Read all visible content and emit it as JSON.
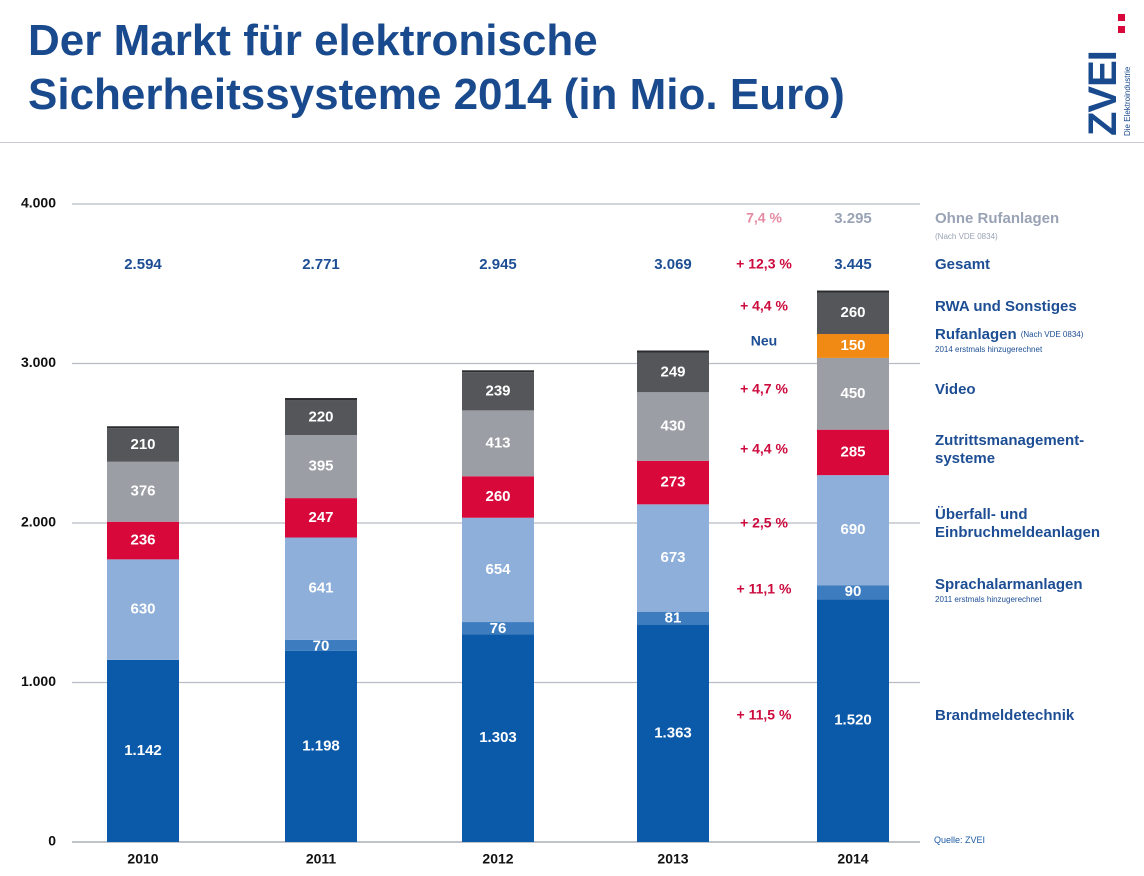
{
  "header": {
    "title_line1": "Der Markt für elektronische",
    "title_line2": "Sicherheitssysteme 2014 (in Mio. Euro)",
    "logo_text": "ZVEI",
    "logo_subtext": "Die Elektroindustrie"
  },
  "source": "Quelle: ZVEI",
  "colors": {
    "title": "#1a4a8e",
    "legend_label": "#1d4e94",
    "growth_text": "#cc0a3d",
    "light_text": "#9aa3b5",
    "light_growth": "#e48aa3"
  },
  "chart_data": {
    "type": "bar",
    "stacked": true,
    "categories": [
      "2010",
      "2011",
      "2012",
      "2013",
      "2014"
    ],
    "y_ticks": [
      "0",
      "1.000",
      "2.000",
      "3.000",
      "4.000"
    ],
    "ylim": [
      0,
      4000
    ],
    "grid": true,
    "legend_placement": "right",
    "series": [
      {
        "name": "Brandmeldetechnik",
        "color": "#0b5aa9",
        "text_color": "#ffffff",
        "values": [
          1142,
          1198,
          1303,
          1363,
          1520
        ],
        "labels": [
          "1.142",
          "1.198",
          "1.303",
          "1.363",
          "1.520"
        ],
        "growth": "+ 11,5 %"
      },
      {
        "name": "Sprachalarmanlagen",
        "subtitle": "2011 erstmals hinzugerechnet",
        "color": "#3d7cbf",
        "text_color": "#ffffff",
        "values": [
          0,
          70,
          76,
          81,
          90
        ],
        "labels": [
          "",
          "70",
          "76",
          "81",
          "90"
        ],
        "growth": "+ 11,1 %"
      },
      {
        "name": "Überfall- und Einbruchmeldeanlagen",
        "color": "#8eafd9",
        "text_color": "#ffffff",
        "values": [
          630,
          641,
          654,
          673,
          690
        ],
        "labels": [
          "630",
          "641",
          "654",
          "673",
          "690"
        ],
        "growth": "+ 2,5 %"
      },
      {
        "name": "Zutrittsmanagement- systeme",
        "color": "#d8083a",
        "text_color": "#ffffff",
        "values": [
          236,
          247,
          260,
          273,
          285
        ],
        "labels": [
          "236",
          "247",
          "260",
          "273",
          "285"
        ],
        "growth": "+ 4,4 %"
      },
      {
        "name": "Video",
        "color": "#9c9ea6",
        "text_color": "#ffffff",
        "values": [
          376,
          395,
          413,
          430,
          450
        ],
        "labels": [
          "376",
          "395",
          "413",
          "430",
          "450"
        ],
        "growth": "+ 4,7 %"
      },
      {
        "name": "Rufanlagen",
        "name_note": "(Nach VDE 0834)",
        "subtitle": "2014 erstmals hinzugerechnet",
        "color": "#f08a14",
        "text_color": "#ffffff",
        "values": [
          0,
          0,
          0,
          0,
          150
        ],
        "labels": [
          "",
          "",
          "",
          "",
          "150"
        ],
        "growth": "Neu"
      },
      {
        "name": "RWA und Sonstiges",
        "color": "#555659",
        "text_color": "#ffffff",
        "values": [
          210,
          220,
          239,
          249,
          260
        ],
        "labels": [
          "210",
          "220",
          "239",
          "249",
          "260"
        ],
        "growth": "+ 4,4 %"
      }
    ],
    "totals": {
      "name": "Gesamt",
      "values": [
        2594,
        2771,
        2945,
        3069,
        3445
      ],
      "labels": [
        "2.594",
        "2.771",
        "2.945",
        "3.069",
        "3.445"
      ],
      "growth": "+ 12,3 %"
    },
    "without_rufanlagen": {
      "name": "Ohne Rufanlagen",
      "note": "(Nach VDE 0834)",
      "value": 3295,
      "label": "3.295",
      "growth": "7,4 %"
    }
  }
}
